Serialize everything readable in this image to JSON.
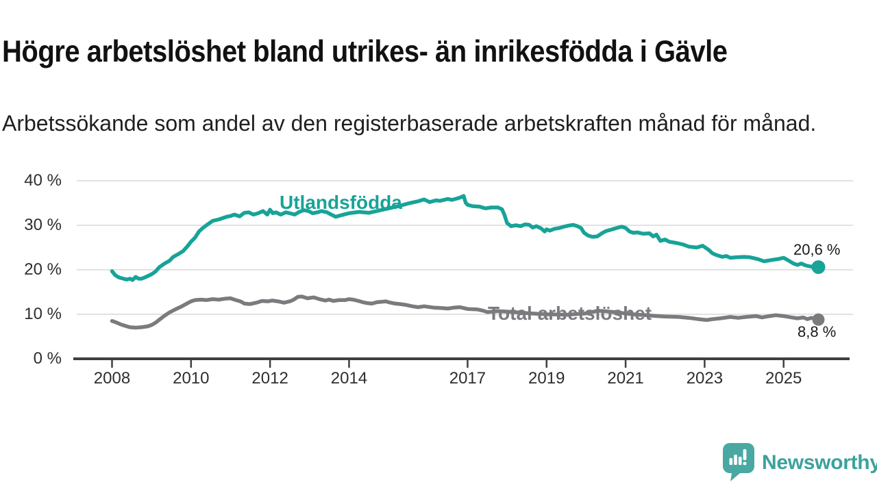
{
  "colors": {
    "foreign_born": "#17A398",
    "total": "#7B7A7E",
    "grid": "#D9D9D9",
    "axis": "#3F3F3F",
    "title_text": "#111111",
    "axis_text": "#2E2E2E",
    "value_label_text": "#1A1A1A",
    "logo_teal": "#4AA8A2",
    "logo_text_teal": "#3BA29D"
  },
  "footer": {
    "brand": "Newsworthy",
    "logo_icon": "speech-bubble-bar-chart-icon"
  },
  "chart_data": {
    "type": "line",
    "title": "Högre arbetslöshet bland utrikes- än inrikesfödda i Gävle",
    "subtitle": "Arbetssökande som andel av den registerbaserade arbetskraften månad för månad.",
    "grid": "horizontal",
    "legend_position": "inline-labels",
    "x_axis": {
      "unit": "year",
      "range": [
        2007.1,
        2026.8
      ],
      "ticks": [
        {
          "value": 2008,
          "label": "2008"
        },
        {
          "value": 2010,
          "label": "2010"
        },
        {
          "value": 2012,
          "label": "2012"
        },
        {
          "value": 2014,
          "label": "2014"
        },
        {
          "value": 2017,
          "label": "2017"
        },
        {
          "value": 2019,
          "label": "2019"
        },
        {
          "value": 2021,
          "label": "2021"
        },
        {
          "value": 2023,
          "label": "2023"
        },
        {
          "value": 2025,
          "label": "2025"
        }
      ]
    },
    "y_axis": {
      "unit": "percent",
      "range": [
        0,
        40
      ],
      "ticks": [
        {
          "value": 40,
          "label": "40 %"
        },
        {
          "value": 30,
          "label": "30 %"
        },
        {
          "value": 20,
          "label": "20 %"
        },
        {
          "value": 10,
          "label": "10 %"
        },
        {
          "value": 0,
          "label": "0 %"
        }
      ]
    },
    "series": [
      {
        "name": "Utlandsfödda",
        "color": "#17A398",
        "end_value": 20.6,
        "end_label": "20,6 %",
        "points": [
          [
            2008.0,
            19.7
          ],
          [
            2008.08,
            18.8
          ],
          [
            2008.17,
            18.3
          ],
          [
            2008.29,
            18.0
          ],
          [
            2008.37,
            17.8
          ],
          [
            2008.46,
            18.0
          ],
          [
            2008.52,
            17.7
          ],
          [
            2008.6,
            18.4
          ],
          [
            2008.67,
            18.0
          ],
          [
            2008.75,
            18.0
          ],
          [
            2008.86,
            18.4
          ],
          [
            2009.0,
            19.0
          ],
          [
            2009.1,
            19.6
          ],
          [
            2009.2,
            20.6
          ],
          [
            2009.33,
            21.4
          ],
          [
            2009.45,
            22.0
          ],
          [
            2009.55,
            22.9
          ],
          [
            2009.67,
            23.5
          ],
          [
            2009.8,
            24.2
          ],
          [
            2009.9,
            25.2
          ],
          [
            2010.0,
            26.3
          ],
          [
            2010.1,
            27.2
          ],
          [
            2010.2,
            28.6
          ],
          [
            2010.3,
            29.4
          ],
          [
            2010.42,
            30.2
          ],
          [
            2010.55,
            31.0
          ],
          [
            2010.7,
            31.3
          ],
          [
            2010.9,
            31.9
          ],
          [
            2011.0,
            32.1
          ],
          [
            2011.1,
            32.4
          ],
          [
            2011.23,
            32.0
          ],
          [
            2011.35,
            32.8
          ],
          [
            2011.46,
            32.9
          ],
          [
            2011.58,
            32.4
          ],
          [
            2011.7,
            32.7
          ],
          [
            2011.82,
            33.2
          ],
          [
            2011.93,
            32.4
          ],
          [
            2012.0,
            33.5
          ],
          [
            2012.07,
            32.7
          ],
          [
            2012.15,
            32.9
          ],
          [
            2012.27,
            32.4
          ],
          [
            2012.4,
            32.9
          ],
          [
            2012.5,
            32.7
          ],
          [
            2012.62,
            32.4
          ],
          [
            2012.74,
            33.0
          ],
          [
            2012.85,
            33.4
          ],
          [
            2012.97,
            33.2
          ],
          [
            2013.08,
            32.7
          ],
          [
            2013.2,
            32.9
          ],
          [
            2013.3,
            33.2
          ],
          [
            2013.44,
            32.9
          ],
          [
            2013.55,
            32.4
          ],
          [
            2013.66,
            31.9
          ],
          [
            2013.78,
            32.2
          ],
          [
            2013.9,
            32.5
          ],
          [
            2014.0,
            32.7
          ],
          [
            2014.25,
            33.0
          ],
          [
            2014.5,
            32.8
          ],
          [
            2014.75,
            33.3
          ],
          [
            2015.0,
            33.8
          ],
          [
            2015.25,
            34.3
          ],
          [
            2015.5,
            34.9
          ],
          [
            2015.75,
            35.4
          ],
          [
            2015.9,
            35.8
          ],
          [
            2016.04,
            35.2
          ],
          [
            2016.2,
            35.6
          ],
          [
            2016.3,
            35.5
          ],
          [
            2016.5,
            35.9
          ],
          [
            2016.6,
            35.7
          ],
          [
            2016.73,
            36.0
          ],
          [
            2016.83,
            36.3
          ],
          [
            2016.9,
            36.6
          ],
          [
            2016.95,
            35.1
          ],
          [
            2017.0,
            34.6
          ],
          [
            2017.13,
            34.3
          ],
          [
            2017.3,
            34.2
          ],
          [
            2017.45,
            33.8
          ],
          [
            2017.6,
            34.0
          ],
          [
            2017.77,
            34.0
          ],
          [
            2017.87,
            33.6
          ],
          [
            2017.93,
            32.4
          ],
          [
            2018.0,
            30.5
          ],
          [
            2018.1,
            29.8
          ],
          [
            2018.22,
            30.0
          ],
          [
            2018.34,
            29.8
          ],
          [
            2018.46,
            30.2
          ],
          [
            2018.56,
            30.1
          ],
          [
            2018.65,
            29.5
          ],
          [
            2018.74,
            29.8
          ],
          [
            2018.86,
            29.3
          ],
          [
            2018.95,
            28.6
          ],
          [
            2019.0,
            29.1
          ],
          [
            2019.08,
            28.8
          ],
          [
            2019.2,
            29.2
          ],
          [
            2019.33,
            29.4
          ],
          [
            2019.44,
            29.7
          ],
          [
            2019.55,
            29.9
          ],
          [
            2019.67,
            30.1
          ],
          [
            2019.78,
            29.8
          ],
          [
            2019.87,
            29.4
          ],
          [
            2019.95,
            28.3
          ],
          [
            2020.05,
            27.7
          ],
          [
            2020.16,
            27.4
          ],
          [
            2020.28,
            27.5
          ],
          [
            2020.4,
            28.2
          ],
          [
            2020.5,
            28.7
          ],
          [
            2020.63,
            29.0
          ],
          [
            2020.74,
            29.3
          ],
          [
            2020.9,
            29.7
          ],
          [
            2021.0,
            29.4
          ],
          [
            2021.1,
            28.6
          ],
          [
            2021.2,
            28.3
          ],
          [
            2021.3,
            28.4
          ],
          [
            2021.45,
            28.1
          ],
          [
            2021.6,
            28.2
          ],
          [
            2021.7,
            27.5
          ],
          [
            2021.78,
            27.9
          ],
          [
            2021.88,
            26.5
          ],
          [
            2022.0,
            26.8
          ],
          [
            2022.1,
            26.3
          ],
          [
            2022.3,
            26.0
          ],
          [
            2022.45,
            25.7
          ],
          [
            2022.6,
            25.2
          ],
          [
            2022.8,
            25.0
          ],
          [
            2022.95,
            25.4
          ],
          [
            2023.1,
            24.5
          ],
          [
            2023.2,
            23.7
          ],
          [
            2023.3,
            23.3
          ],
          [
            2023.45,
            22.9
          ],
          [
            2023.55,
            23.1
          ],
          [
            2023.65,
            22.7
          ],
          [
            2023.8,
            22.8
          ],
          [
            2024.0,
            22.9
          ],
          [
            2024.15,
            22.8
          ],
          [
            2024.35,
            22.4
          ],
          [
            2024.5,
            21.9
          ],
          [
            2024.7,
            22.2
          ],
          [
            2024.85,
            22.4
          ],
          [
            2025.0,
            22.7
          ],
          [
            2025.1,
            22.2
          ],
          [
            2025.25,
            21.4
          ],
          [
            2025.35,
            21.1
          ],
          [
            2025.45,
            21.4
          ],
          [
            2025.55,
            21.0
          ],
          [
            2025.7,
            20.7
          ],
          [
            2025.78,
            21.0
          ],
          [
            2025.88,
            20.6
          ]
        ]
      },
      {
        "name": "Total arbetslöshet",
        "color": "#7B7A7E",
        "end_value": 8.8,
        "end_label": "8,8 %",
        "points": [
          [
            2008.0,
            8.5
          ],
          [
            2008.1,
            8.2
          ],
          [
            2008.2,
            7.8
          ],
          [
            2008.3,
            7.5
          ],
          [
            2008.45,
            7.1
          ],
          [
            2008.6,
            7.0
          ],
          [
            2008.75,
            7.1
          ],
          [
            2008.9,
            7.3
          ],
          [
            2009.0,
            7.6
          ],
          [
            2009.1,
            8.1
          ],
          [
            2009.2,
            8.8
          ],
          [
            2009.3,
            9.5
          ],
          [
            2009.45,
            10.4
          ],
          [
            2009.6,
            11.1
          ],
          [
            2009.75,
            11.7
          ],
          [
            2009.85,
            12.2
          ],
          [
            2010.0,
            12.9
          ],
          [
            2010.1,
            13.2
          ],
          [
            2010.25,
            13.3
          ],
          [
            2010.4,
            13.2
          ],
          [
            2010.55,
            13.4
          ],
          [
            2010.7,
            13.3
          ],
          [
            2010.85,
            13.5
          ],
          [
            2011.0,
            13.6
          ],
          [
            2011.1,
            13.3
          ],
          [
            2011.25,
            12.9
          ],
          [
            2011.35,
            12.4
          ],
          [
            2011.5,
            12.3
          ],
          [
            2011.65,
            12.6
          ],
          [
            2011.8,
            13.0
          ],
          [
            2011.95,
            12.9
          ],
          [
            2012.05,
            13.1
          ],
          [
            2012.2,
            12.9
          ],
          [
            2012.35,
            12.6
          ],
          [
            2012.5,
            12.9
          ],
          [
            2012.6,
            13.3
          ],
          [
            2012.7,
            13.9
          ],
          [
            2012.8,
            14.0
          ],
          [
            2012.95,
            13.6
          ],
          [
            2013.1,
            13.8
          ],
          [
            2013.25,
            13.4
          ],
          [
            2013.4,
            13.1
          ],
          [
            2013.5,
            13.3
          ],
          [
            2013.6,
            13.0
          ],
          [
            2013.75,
            13.2
          ],
          [
            2013.9,
            13.2
          ],
          [
            2014.0,
            13.4
          ],
          [
            2014.1,
            13.3
          ],
          [
            2014.24,
            13.0
          ],
          [
            2014.35,
            12.7
          ],
          [
            2014.47,
            12.5
          ],
          [
            2014.58,
            12.4
          ],
          [
            2014.7,
            12.7
          ],
          [
            2014.82,
            12.8
          ],
          [
            2014.93,
            12.9
          ],
          [
            2015.05,
            12.6
          ],
          [
            2015.17,
            12.4
          ],
          [
            2015.3,
            12.3
          ],
          [
            2015.45,
            12.1
          ],
          [
            2015.6,
            11.8
          ],
          [
            2015.75,
            11.6
          ],
          [
            2015.9,
            11.8
          ],
          [
            2016.15,
            11.5
          ],
          [
            2016.35,
            11.4
          ],
          [
            2016.5,
            11.3
          ],
          [
            2016.65,
            11.5
          ],
          [
            2016.8,
            11.6
          ],
          [
            2017.0,
            11.2
          ],
          [
            2017.25,
            11.1
          ],
          [
            2017.4,
            10.8
          ],
          [
            2017.5,
            10.5
          ],
          [
            2017.75,
            10.7
          ],
          [
            2018.0,
            10.6
          ],
          [
            2018.3,
            10.4
          ],
          [
            2018.6,
            10.2
          ],
          [
            2019.0,
            10.0
          ],
          [
            2019.5,
            9.9
          ],
          [
            2020.0,
            10.2
          ],
          [
            2020.3,
            10.8
          ],
          [
            2020.6,
            10.6
          ],
          [
            2020.9,
            10.3
          ],
          [
            2021.2,
            10.0
          ],
          [
            2021.5,
            9.8
          ],
          [
            2021.8,
            9.6
          ],
          [
            2022.0,
            9.5
          ],
          [
            2022.35,
            9.4
          ],
          [
            2022.6,
            9.2
          ],
          [
            2022.85,
            8.9
          ],
          [
            2023.05,
            8.7
          ],
          [
            2023.2,
            8.9
          ],
          [
            2023.4,
            9.1
          ],
          [
            2023.65,
            9.4
          ],
          [
            2023.85,
            9.2
          ],
          [
            2024.05,
            9.4
          ],
          [
            2024.3,
            9.6
          ],
          [
            2024.45,
            9.3
          ],
          [
            2024.65,
            9.6
          ],
          [
            2024.8,
            9.8
          ],
          [
            2025.0,
            9.6
          ],
          [
            2025.2,
            9.3
          ],
          [
            2025.35,
            9.1
          ],
          [
            2025.5,
            9.3
          ],
          [
            2025.6,
            8.9
          ],
          [
            2025.7,
            9.2
          ],
          [
            2025.88,
            8.8
          ]
        ]
      }
    ]
  }
}
